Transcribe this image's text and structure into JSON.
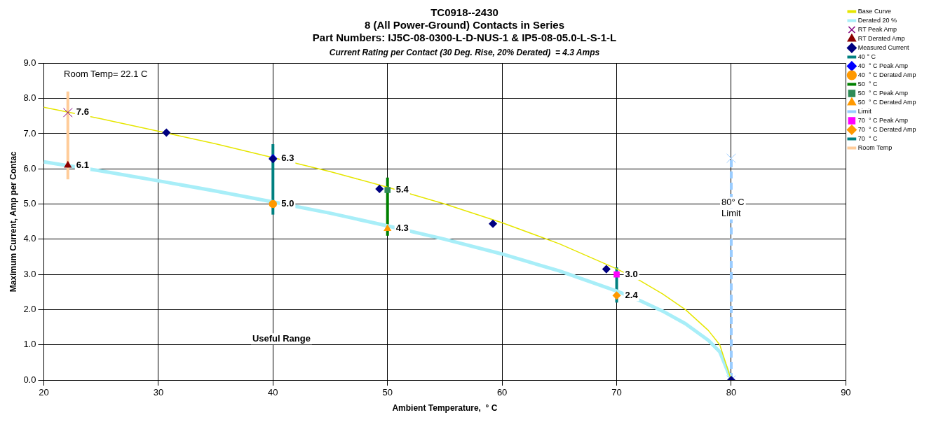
{
  "chart_data": {
    "type": "line",
    "title": "TC0918--2430\n8 (All Power-Ground) Contacts in Series\nPart Numbers: IJ5C-08-0300-L-D-NUS-1 & IP5-08-05.0-L-S-1-L",
    "subtitle": "Current Rating per Contact (30 Deg. Rise, 20% Derated)  = 4.3 Amps",
    "xlabel": "Ambient Temperature,  ° C",
    "ylabel": "Maximum Current, Amp per Contac",
    "xlim": [
      20,
      90
    ],
    "xticks": [
      20,
      30,
      40,
      50,
      60,
      70,
      80,
      90
    ],
    "ylim": [
      0,
      9
    ],
    "yticks": [
      {
        "value": 0,
        "label": "0.0"
      },
      {
        "value": 1,
        "label": "1.0"
      },
      {
        "value": 2,
        "label": "2.0"
      },
      {
        "value": 3,
        "label": "3.0"
      },
      {
        "value": 4,
        "label": "4.0"
      },
      {
        "value": 5,
        "label": "5.0"
      },
      {
        "value": 6,
        "label": "6.0"
      },
      {
        "value": 7,
        "label": "7.0"
      },
      {
        "value": 8,
        "label": "8.0"
      },
      {
        "value": 9,
        "label": "9.0"
      }
    ],
    "grid": true,
    "legend": "right",
    "series": [
      {
        "name": "Base Curve",
        "color": "#e6e600",
        "marker": "none",
        "x": [
          20,
          25,
          30,
          35,
          40,
          45,
          50,
          55,
          60,
          65,
          70,
          72,
          74,
          76,
          78,
          79,
          80
        ],
        "values": [
          7.75,
          7.42,
          7.07,
          6.71,
          6.32,
          5.92,
          5.48,
          5.0,
          4.47,
          3.87,
          3.16,
          2.83,
          2.45,
          2.0,
          1.41,
          1.0,
          0
        ]
      },
      {
        "name": "Derated 20 %",
        "color": "#a8eef8",
        "marker": "none",
        "x": [
          20,
          25,
          30,
          35,
          40,
          45,
          50,
          55,
          60,
          65,
          70,
          72,
          74,
          76,
          78,
          79,
          80
        ],
        "values": [
          6.2,
          5.94,
          5.66,
          5.37,
          5.06,
          4.74,
          4.38,
          4.0,
          3.58,
          3.1,
          2.53,
          2.26,
          1.96,
          1.6,
          1.13,
          0.8,
          0
        ]
      },
      {
        "name": "RT Peak Amp",
        "type": "scatter",
        "color": "#800080",
        "marker": "cross",
        "x": [
          22.1
        ],
        "values": [
          7.6
        ],
        "value_labels": [
          "7.6"
        ]
      },
      {
        "name": "RT Derated Amp",
        "type": "scatter",
        "color": "#8b0000",
        "marker": "triangle",
        "x": [
          22.1
        ],
        "values": [
          6.1
        ],
        "value_labels": [
          "6.1"
        ]
      },
      {
        "name": "Measured Current",
        "type": "scatter",
        "color": "#000080",
        "marker": "diamond",
        "x": [
          30.7,
          40,
          49.3,
          59.2,
          69.1,
          80
        ],
        "values": [
          7.03,
          6.28,
          5.43,
          4.44,
          3.15,
          0
        ]
      },
      {
        "name": "40 ° C",
        "type": "line",
        "color": "#008080",
        "marker": "none",
        "x": [
          40,
          40
        ],
        "values": [
          4.7,
          6.7
        ]
      },
      {
        "name": "40  ° C Peak Amp",
        "type": "scatter",
        "color": "#0000ff",
        "marker": "diamond",
        "x": [
          40
        ],
        "values": [
          6.3
        ],
        "value_labels": [
          "6.3"
        ]
      },
      {
        "name": "40  ° C Derated Amp",
        "type": "scatter",
        "color": "#ff9900",
        "marker": "circle",
        "x": [
          40
        ],
        "values": [
          5.0
        ],
        "value_labels": [
          "5.0"
        ]
      },
      {
        "name": "50  ° C",
        "type": "line",
        "color": "#008000",
        "marker": "none",
        "x": [
          50,
          50
        ],
        "values": [
          4.1,
          5.75
        ]
      },
      {
        "name": "50  ° C Peak Amp",
        "type": "scatter",
        "color": "#2e8b57",
        "marker": "square",
        "x": [
          50
        ],
        "values": [
          5.4
        ],
        "value_labels": [
          "5.4"
        ]
      },
      {
        "name": "50  ° C Derated Amp",
        "type": "scatter",
        "color": "#ff9900",
        "marker": "triangle",
        "x": [
          50
        ],
        "values": [
          4.3
        ],
        "value_labels": [
          "4.3"
        ]
      },
      {
        "name": "Limit",
        "type": "line",
        "color": "#99ccff",
        "marker": "cross",
        "line_style": "dashed",
        "x": [
          80,
          80
        ],
        "values": [
          0,
          6.3
        ]
      },
      {
        "name": "70  ° C Peak Amp",
        "type": "scatter",
        "color": "#ff00ff",
        "marker": "square",
        "x": [
          70
        ],
        "values": [
          3.0
        ],
        "value_labels": [
          "3.0"
        ]
      },
      {
        "name": "70  ° C Derated Amp",
        "type": "scatter",
        "color": "#ff9900",
        "marker": "diamond",
        "x": [
          70
        ],
        "values": [
          2.4
        ],
        "value_labels": [
          "2.4"
        ]
      },
      {
        "name": "70  ° C",
        "type": "line",
        "color": "#008080",
        "marker": "none",
        "x": [
          70,
          70
        ],
        "values": [
          2.2,
          3.2
        ]
      },
      {
        "name": "Room Temp",
        "type": "line",
        "color": "#ffcc99",
        "marker": "none",
        "x": [
          22.1,
          22.1
        ],
        "values": [
          5.7,
          8.2
        ]
      }
    ],
    "annotations": [
      "Room Temp= 22.1 C",
      "80° C\nLimit",
      "Useful Range"
    ]
  }
}
